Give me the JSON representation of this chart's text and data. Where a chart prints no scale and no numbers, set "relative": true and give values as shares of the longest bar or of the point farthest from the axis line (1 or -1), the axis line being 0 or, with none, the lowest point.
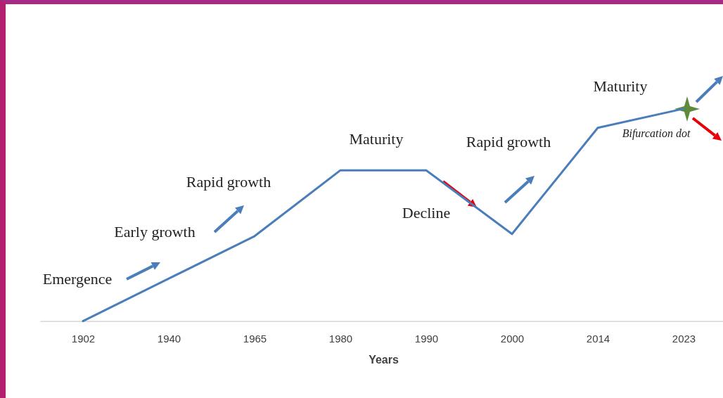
{
  "chart_data": {
    "type": "line",
    "relative": true,
    "xlabel": "Years",
    "categories": [
      "1902",
      "1940",
      "1965",
      "1980",
      "1990",
      "2000",
      "2014",
      "2023"
    ],
    "series": [
      {
        "color": "#4a7ebb",
        "values": [
          0,
          0.2,
          0.4,
          0.71,
          0.71,
          0.41,
          0.91,
          1
        ]
      }
    ],
    "annotations": [
      "Emergence",
      "Early growth",
      "Rapid growth",
      "Maturity",
      "Decline",
      "Rapid growth",
      "Maturity",
      "Bifurcation dot"
    ],
    "grid": false,
    "marker": "none",
    "line_style": "solid"
  }
}
